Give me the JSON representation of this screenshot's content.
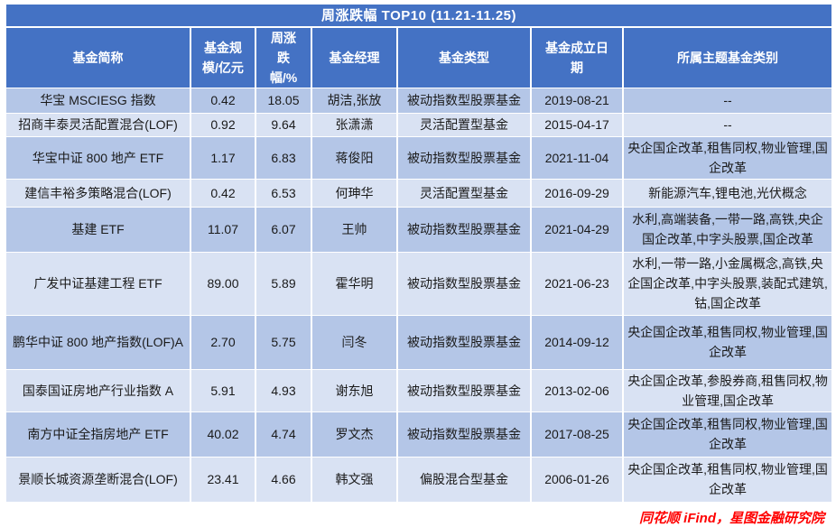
{
  "table": {
    "title": "周涨跌幅 TOP10 (11.21-11.25)",
    "columns": [
      "基金简称",
      "基金规模/亿元",
      "周涨跌幅/%",
      "基金经理",
      "基金类型",
      "基金成立日期",
      "所属主题基金类别"
    ],
    "rows": [
      {
        "name": "华宝 MSCIESG 指数",
        "size": "0.42",
        "change": "18.05",
        "manager": "胡洁,张放",
        "type": "被动指数型股票基金",
        "date": "2019-08-21",
        "category": "--"
      },
      {
        "name": "招商丰泰灵活配置混合(LOF)",
        "size": "0.92",
        "change": "9.64",
        "manager": "张潇潇",
        "type": "灵活配置型基金",
        "date": "2015-04-17",
        "category": "--"
      },
      {
        "name": "华宝中证 800 地产 ETF",
        "size": "1.17",
        "change": "6.83",
        "manager": "蒋俊阳",
        "type": "被动指数型股票基金",
        "date": "2021-11-04",
        "category": "央企国企改革,租售同权,物业管理,国企改革"
      },
      {
        "name": "建信丰裕多策略混合(LOF)",
        "size": "0.42",
        "change": "6.53",
        "manager": "何珅华",
        "type": "灵活配置型基金",
        "date": "2016-09-29",
        "category": "新能源汽车,锂电池,光伏概念"
      },
      {
        "name": "基建 ETF",
        "size": "11.07",
        "change": "6.07",
        "manager": "王帅",
        "type": "被动指数型股票基金",
        "date": "2021-04-29",
        "category": "水利,高端装备,一带一路,高铁,央企国企改革,中字头股票,国企改革"
      },
      {
        "name": "广发中证基建工程 ETF",
        "size": "89.00",
        "change": "5.89",
        "manager": "霍华明",
        "type": "被动指数型股票基金",
        "date": "2021-06-23",
        "category": "水利,一带一路,小金属概念,高铁,央企国企改革,中字头股票,装配式建筑,钴,国企改革"
      },
      {
        "name": "鹏华中证 800 地产指数(LOF)A",
        "size": "2.70",
        "change": "5.75",
        "manager": "闫冬",
        "type": "被动指数型股票基金",
        "date": "2014-09-12",
        "category": "央企国企改革,租售同权,物业管理,国企改革"
      },
      {
        "name": "国泰国证房地产行业指数 A",
        "size": "5.91",
        "change": "4.93",
        "manager": "谢东旭",
        "type": "被动指数型股票基金",
        "date": "2013-02-06",
        "category": "央企国企改革,参股券商,租售同权,物业管理,国企改革"
      },
      {
        "name": "南方中证全指房地产 ETF",
        "size": "40.02",
        "change": "4.74",
        "manager": "罗文杰",
        "type": "被动指数型股票基金",
        "date": "2017-08-25",
        "category": "央企国企改革,租售同权,物业管理,国企改革"
      },
      {
        "name": "景顺长城资源垄断混合(LOF)",
        "size": "23.41",
        "change": "4.66",
        "manager": "韩文强",
        "type": "偏股混合型基金",
        "date": "2006-01-26",
        "category": "央企国企改革,租售同权,物业管理,国企改革"
      }
    ]
  },
  "footer": {
    "source": "同花顺 iFind，星图金融研究院"
  },
  "colors": {
    "header_bg": "#4472c4",
    "row_odd_bg": "#b4c6e7",
    "row_even_bg": "#d9e2f3",
    "source_text": "#ff0000"
  },
  "chart_data": {
    "type": "table",
    "title": "周涨跌幅 TOP10 (11.21-11.25)",
    "columns": [
      "基金简称",
      "基金规模/亿元",
      "周涨跌幅/%",
      "基金经理",
      "基金类型",
      "基金成立日期",
      "所属主题基金类别"
    ],
    "rows": [
      [
        "华宝 MSCIESG 指数",
        "0.42",
        "18.05",
        "胡洁,张放",
        "被动指数型股票基金",
        "2019-08-21",
        "--"
      ],
      [
        "招商丰泰灵活配置混合(LOF)",
        "0.92",
        "9.64",
        "张潇潇",
        "灵活配置型基金",
        "2015-04-17",
        "--"
      ],
      [
        "华宝中证 800 地产 ETF",
        "1.17",
        "6.83",
        "蒋俊阳",
        "被动指数型股票基金",
        "2021-11-04",
        "央企国企改革,租售同权,物业管理,国企改革"
      ],
      [
        "建信丰裕多策略混合(LOF)",
        "0.42",
        "6.53",
        "何珅华",
        "灵活配置型基金",
        "2016-09-29",
        "新能源汽车,锂电池,光伏概念"
      ],
      [
        "基建 ETF",
        "11.07",
        "6.07",
        "王帅",
        "被动指数型股票基金",
        "2021-04-29",
        "水利,高端装备,一带一路,高铁,央企国企改革,中字头股票,国企改革"
      ],
      [
        "广发中证基建工程 ETF",
        "89.00",
        "5.89",
        "霍华明",
        "被动指数型股票基金",
        "2021-06-23",
        "水利,一带一路,小金属概念,高铁,央企国企改革,中字头股票,装配式建筑,钴,国企改革"
      ],
      [
        "鹏华中证 800 地产指数(LOF)A",
        "2.70",
        "5.75",
        "闫冬",
        "被动指数型股票基金",
        "2014-09-12",
        "央企国企改革,租售同权,物业管理,国企改革"
      ],
      [
        "国泰国证房地产行业指数 A",
        "5.91",
        "4.93",
        "谢东旭",
        "被动指数型股票基金",
        "2013-02-06",
        "央企国企改革,参股券商,租售同权,物业管理,国企改革"
      ],
      [
        "南方中证全指房地产 ETF",
        "40.02",
        "4.74",
        "罗文杰",
        "被动指数型股票基金",
        "2017-08-25",
        "央企国企改革,租售同权,物业管理,国企改革"
      ],
      [
        "景顺长城资源垄断混合(LOF)",
        "23.41",
        "4.66",
        "韩文强",
        "偏股混合型基金",
        "2006-01-26",
        "央企国企改革,租售同权,物业管理,国企改革"
      ]
    ]
  }
}
